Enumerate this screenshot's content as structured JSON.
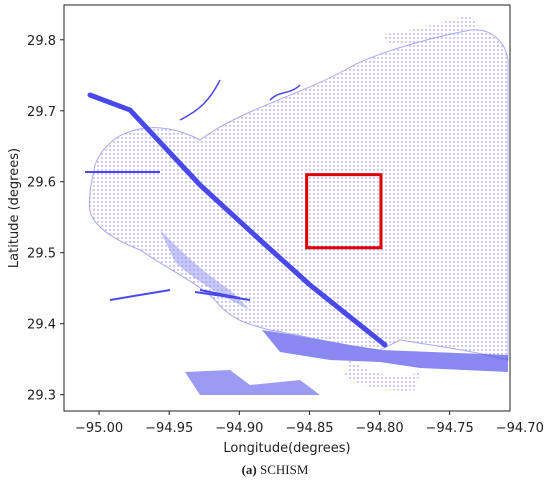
{
  "chart_data": {
    "type": "mesh",
    "xlabel": "Longitude(degrees)",
    "ylabel": "Latitude (degrees)",
    "xlim": [
      -95.025,
      -94.707
    ],
    "ylim": [
      29.277,
      29.849
    ],
    "xticks": [
      {
        "value": -95.0,
        "label": "−95.00"
      },
      {
        "value": -94.95,
        "label": "−94.95"
      },
      {
        "value": -94.9,
        "label": "−94.90"
      },
      {
        "value": -94.85,
        "label": "−94.85"
      },
      {
        "value": -94.8,
        "label": "−94.80"
      },
      {
        "value": -94.75,
        "label": "−94.75"
      },
      {
        "value": -94.7,
        "label": "−94.70"
      }
    ],
    "yticks": [
      29.3,
      29.4,
      29.5,
      29.6,
      29.7,
      29.8
    ],
    "highlight_box": {
      "x": [
        -94.852,
        -94.799
      ],
      "y": [
        29.507,
        29.61
      ],
      "color": "#e00000"
    },
    "mesh_color": "#2a2ae8",
    "caption_label": "(a)",
    "caption": "SCHISM"
  }
}
